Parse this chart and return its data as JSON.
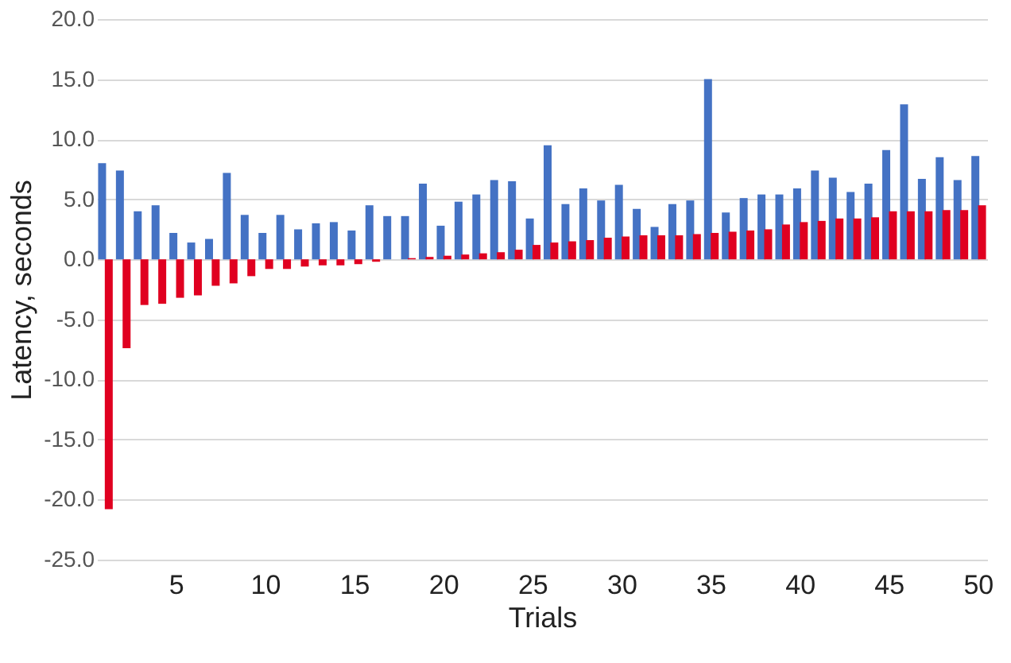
{
  "chart_data": {
    "type": "bar",
    "xlabel": "Trials",
    "ylabel": "Latency, seconds",
    "categories": [
      null,
      null,
      null,
      null,
      "5",
      null,
      null,
      null,
      null,
      "10",
      null,
      null,
      null,
      null,
      "15",
      null,
      null,
      null,
      null,
      "20",
      null,
      null,
      null,
      null,
      "25",
      null,
      null,
      null,
      null,
      "30",
      null,
      null,
      null,
      null,
      "35",
      null,
      null,
      null,
      null,
      "40",
      null,
      null,
      null,
      null,
      "45",
      null,
      null,
      null,
      null,
      "50"
    ],
    "series": [
      {
        "color": "#4472c4",
        "values": [
          8.0,
          7.4,
          4.0,
          4.5,
          2.2,
          1.4,
          1.7,
          7.2,
          3.7,
          2.2,
          3.7,
          2.5,
          3.0,
          3.1,
          2.4,
          4.5,
          3.6,
          3.6,
          6.3,
          2.8,
          4.8,
          5.4,
          6.6,
          6.5,
          3.4,
          9.5,
          4.6,
          5.9,
          4.9,
          6.2,
          4.2,
          2.7,
          4.6,
          4.9,
          15.0,
          3.9,
          5.1,
          5.4,
          5.4,
          5.9,
          7.4,
          6.8,
          5.6,
          6.3,
          9.1,
          12.9,
          6.7,
          8.5,
          6.6,
          8.6
        ]
      },
      {
        "color": "#e00020",
        "values": [
          -20.8,
          -7.4,
          -3.8,
          -3.7,
          -3.2,
          -3.0,
          -2.2,
          -2.0,
          -1.4,
          -0.8,
          -0.8,
          -0.6,
          -0.5,
          -0.5,
          -0.4,
          -0.2,
          0,
          0.1,
          0.2,
          0.3,
          0.4,
          0.5,
          0.6,
          0.8,
          1.2,
          1.4,
          1.5,
          1.6,
          1.8,
          1.9,
          2.0,
          2.0,
          2.0,
          2.1,
          2.2,
          2.3,
          2.4,
          2.5,
          2.9,
          3.1,
          3.2,
          3.4,
          3.4,
          3.5,
          4.0,
          4.0,
          4.0,
          4.1,
          4.1,
          4.5
        ]
      }
    ],
    "ylim": [
      -25,
      20
    ],
    "yticks": [
      {
        "value": -25,
        "label": "-25.0"
      },
      {
        "value": -20,
        "label": "-20.0"
      },
      {
        "value": -15,
        "label": "-15.0"
      },
      {
        "value": -10,
        "label": "-10.0"
      },
      {
        "value": -5,
        "label": "-5.0"
      },
      {
        "value": 0,
        "label": "0.0"
      },
      {
        "value": 5,
        "label": "5.0"
      },
      {
        "value": 10,
        "label": "10.0"
      },
      {
        "value": 15,
        "label": "15.0"
      },
      {
        "value": 20,
        "label": "20.0"
      }
    ],
    "grid": "y",
    "legend": false
  }
}
